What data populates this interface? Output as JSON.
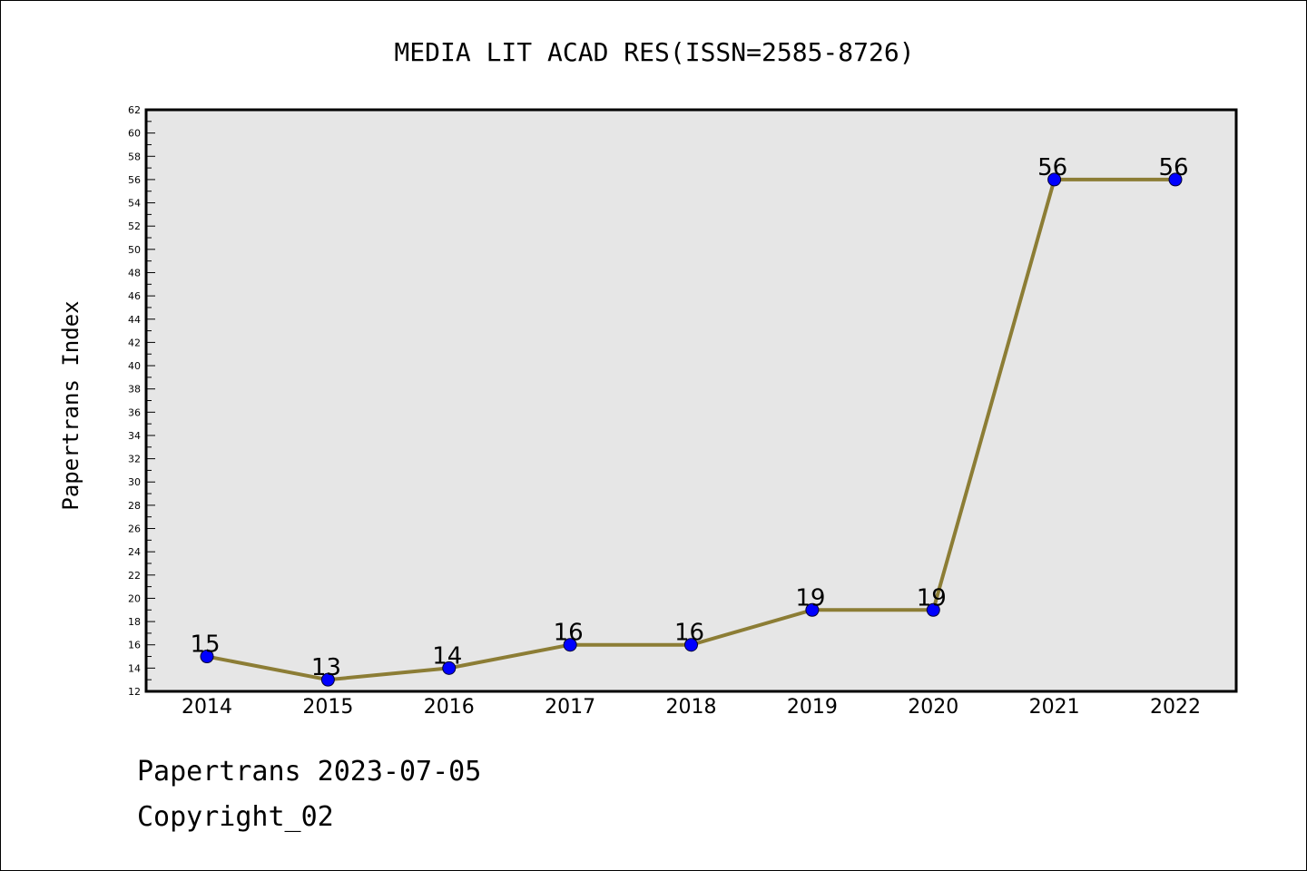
{
  "chart_data": {
    "type": "line",
    "title": "MEDIA LIT ACAD RES(ISSN=2585-8726)",
    "ylabel": "Papertrans Index",
    "xlabel": "",
    "categories": [
      "2014",
      "2015",
      "2016",
      "2017",
      "2018",
      "2019",
      "2020",
      "2021",
      "2022"
    ],
    "series": [
      {
        "values": [
          15,
          13,
          14,
          16,
          16,
          19,
          19,
          56,
          56
        ]
      }
    ],
    "data_labels": [
      "15",
      "13",
      "14",
      "16",
      "16",
      "19",
      "19",
      "56",
      "56"
    ],
    "ylim": [
      12,
      62
    ],
    "y_tick_step": 2,
    "grid": false,
    "line_color": "#8c7d35",
    "marker_color": "#0000ff",
    "plot_background": "#e6e6e6"
  },
  "footer": {
    "line1": "Papertrans 2023-07-05",
    "line2": "Copyright_02"
  }
}
